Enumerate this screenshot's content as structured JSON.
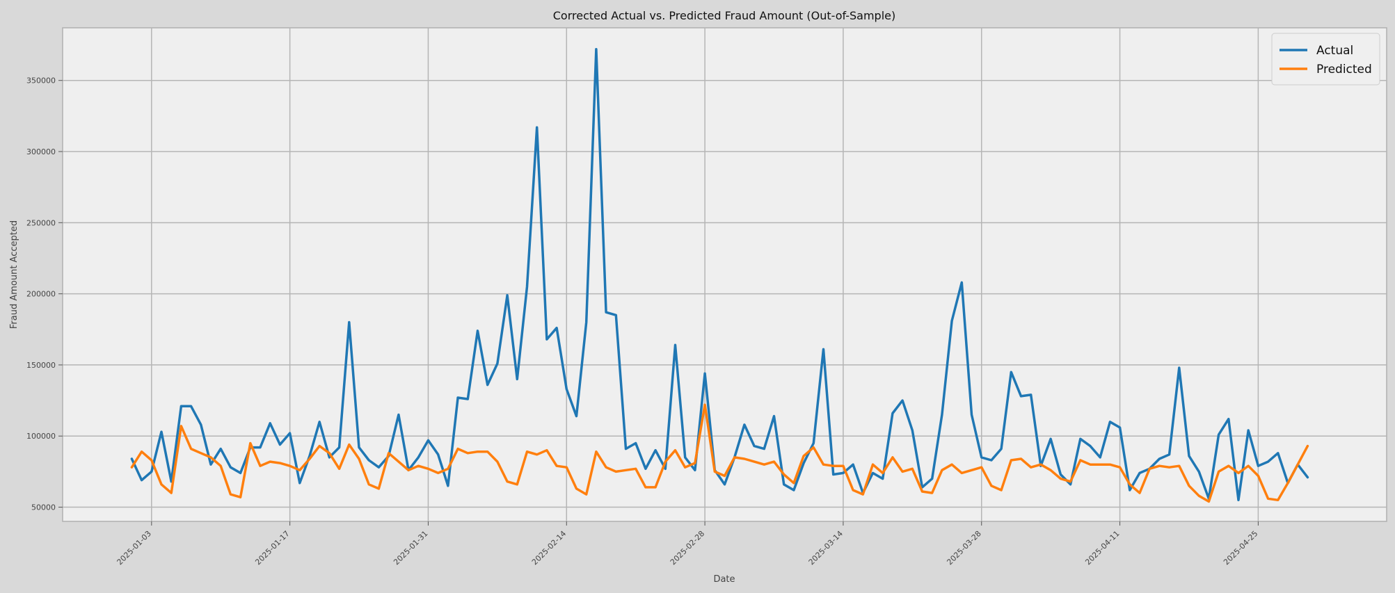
{
  "chart_data": {
    "type": "line",
    "title": "Corrected Actual vs. Predicted Fraud Amount (Out-of-Sample)",
    "xlabel": "Date",
    "ylabel": "Fraud Amount Accepted",
    "x_start": "2025-01-01",
    "x_step_days": 1,
    "xlim": [
      "2024-12-25",
      "2025-05-08"
    ],
    "ylim": [
      40000,
      387000
    ],
    "x_ticks": [
      "2025-01-03",
      "2025-01-17",
      "2025-01-31",
      "2025-02-14",
      "2025-02-28",
      "2025-03-14",
      "2025-03-28",
      "2025-04-11",
      "2025-04-25"
    ],
    "y_ticks": [
      50000,
      100000,
      150000,
      200000,
      250000,
      300000,
      350000
    ],
    "grid": true,
    "legend_position": "top-right",
    "colors": {
      "Actual": "#1f77b4",
      "Predicted": "#ff7f0e"
    },
    "series": [
      {
        "name": "Actual",
        "values": [
          84000,
          69000,
          75000,
          103000,
          68000,
          121000,
          121000,
          108000,
          80000,
          91000,
          78000,
          74000,
          92000,
          92000,
          109000,
          94000,
          102000,
          67000,
          86000,
          110000,
          85000,
          92000,
          180000,
          92000,
          83000,
          78000,
          86000,
          115000,
          76000,
          85000,
          97000,
          87000,
          65000,
          127000,
          126000,
          174000,
          136000,
          151000,
          199000,
          140000,
          205000,
          317000,
          168000,
          176000,
          133000,
          114000,
          180000,
          372000,
          187000,
          185000,
          91000,
          95000,
          77000,
          90000,
          77000,
          164000,
          85000,
          76000,
          144000,
          76000,
          66000,
          85000,
          108000,
          93000,
          91000,
          114000,
          66000,
          62000,
          81000,
          95000,
          161000,
          73000,
          74000,
          80000,
          60000,
          74000,
          70000,
          116000,
          125000,
          104000,
          64000,
          70000,
          115000,
          181000,
          208000,
          115000,
          85000,
          83000,
          91000,
          145000,
          128000,
          129000,
          79000,
          98000,
          73000,
          66000,
          98000,
          93000,
          85000,
          110000,
          106000,
          62000,
          74000,
          77000,
          84000,
          87000,
          148000,
          86000,
          75000,
          56000,
          101000,
          112000,
          55000,
          104000,
          79000,
          82000,
          88000,
          67000,
          80000,
          71000
        ]
      },
      {
        "name": "Predicted",
        "values": [
          78000,
          89000,
          83000,
          66000,
          60000,
          107000,
          91000,
          88000,
          85000,
          79000,
          59000,
          57000,
          95000,
          79000,
          82000,
          81000,
          79000,
          76000,
          84000,
          93000,
          88000,
          77000,
          94000,
          84000,
          66000,
          63000,
          88000,
          82000,
          76000,
          79000,
          77000,
          74000,
          77000,
          91000,
          88000,
          89000,
          89000,
          82000,
          68000,
          66000,
          89000,
          87000,
          90000,
          79000,
          78000,
          63000,
          59000,
          89000,
          78000,
          75000,
          76000,
          77000,
          64000,
          64000,
          82000,
          90000,
          78000,
          81000,
          122000,
          75000,
          72000,
          85000,
          84000,
          82000,
          80000,
          82000,
          73000,
          67000,
          86000,
          92000,
          80000,
          79000,
          79000,
          62000,
          59000,
          80000,
          74000,
          85000,
          75000,
          77000,
          61000,
          60000,
          76000,
          80000,
          74000,
          76000,
          78000,
          65000,
          62000,
          83000,
          84000,
          78000,
          80000,
          76000,
          70000,
          68000,
          83000,
          80000,
          80000,
          80000,
          78000,
          66000,
          60000,
          77000,
          79000,
          78000,
          79000,
          65000,
          58000,
          54000,
          75000,
          79000,
          74000,
          79000,
          72000,
          56000,
          55000,
          67000,
          80000,
          93000
        ]
      }
    ]
  }
}
